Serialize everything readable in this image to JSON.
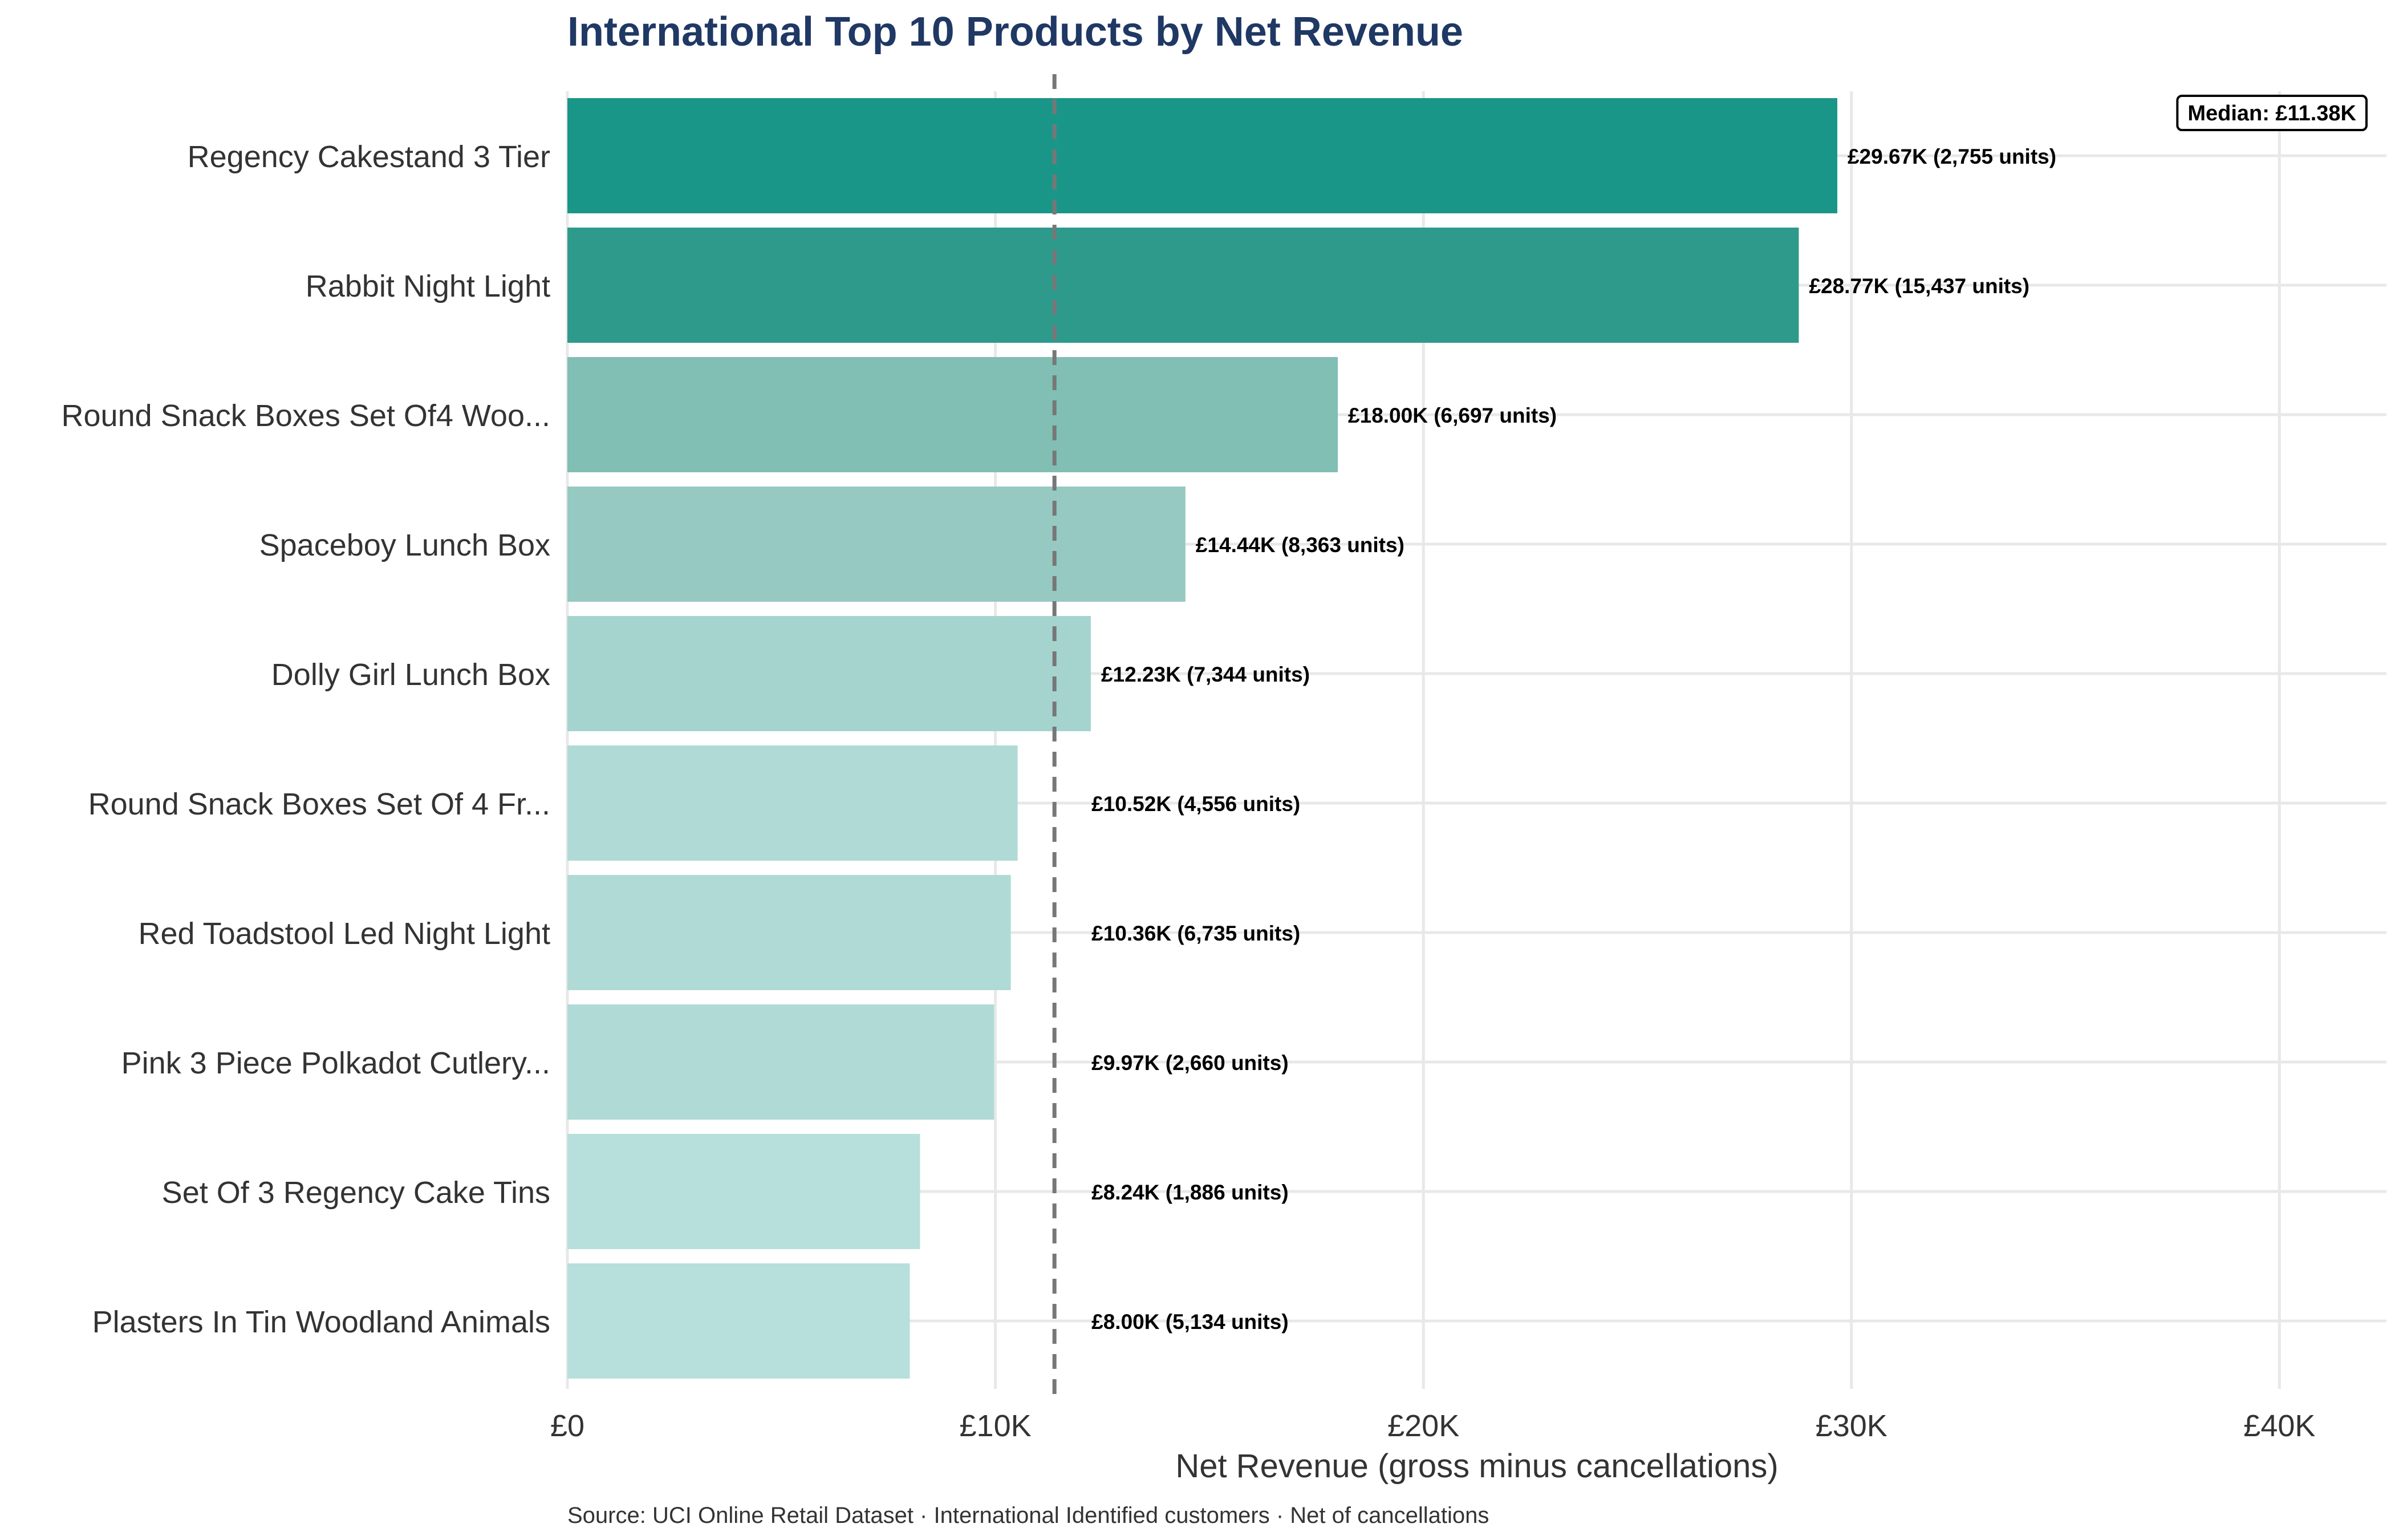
{
  "chart_data": {
    "type": "bar",
    "orientation": "horizontal",
    "title": "International Top 10 Products by Net Revenue",
    "xlabel": "Net Revenue (gross minus cancellations)",
    "ylabel": "",
    "caption": "Source: UCI Online Retail Dataset · International Identified customers · Net of cancellations",
    "xlim": [
      0,
      42500
    ],
    "x_ticks": [
      0,
      10000,
      20000,
      30000,
      40000
    ],
    "x_tick_labels": [
      "£0",
      "£10K",
      "£20K",
      "£30K",
      "£40K"
    ],
    "grid": true,
    "categories": [
      "Regency Cakestand 3 Tier",
      "Rabbit Night Light",
      "Round Snack Boxes Set Of4 Woo...",
      "Spaceboy Lunch Box",
      "Dolly Girl Lunch Box",
      "Round Snack Boxes Set Of 4 Fr...",
      "Red Toadstool Led Night Light",
      "Pink 3 Piece Polkadot Cutlery...",
      "Set Of 3 Regency Cake Tins",
      "Plasters In Tin Woodland Animals"
    ],
    "values": [
      29670,
      28770,
      18000,
      14440,
      12230,
      10520,
      10360,
      9970,
      8240,
      8000
    ],
    "value_labels": [
      "£29.67K  (2,755 units)",
      "£28.77K  (15,437 units)",
      "£18.00K  (6,697 units)",
      "£14.44K  (8,363 units)",
      "£12.23K  (7,344 units)",
      "£10.52K  (4,556 units)",
      "£10.36K  (6,735 units)",
      "£9.97K  (2,660 units)",
      "£8.24K  (1,886 units)",
      "£8.00K  (5,134 units)"
    ],
    "bar_colors": [
      "#1a9688",
      "#2e9a8c",
      "#81beb4",
      "#96c9c2",
      "#a5d4cf",
      "#b0dad6",
      "#b0dad6",
      "#b0dad6",
      "#b7dfdc",
      "#b7dfdc"
    ],
    "median": {
      "value": 11380,
      "label": "Median: £11.38K"
    }
  }
}
